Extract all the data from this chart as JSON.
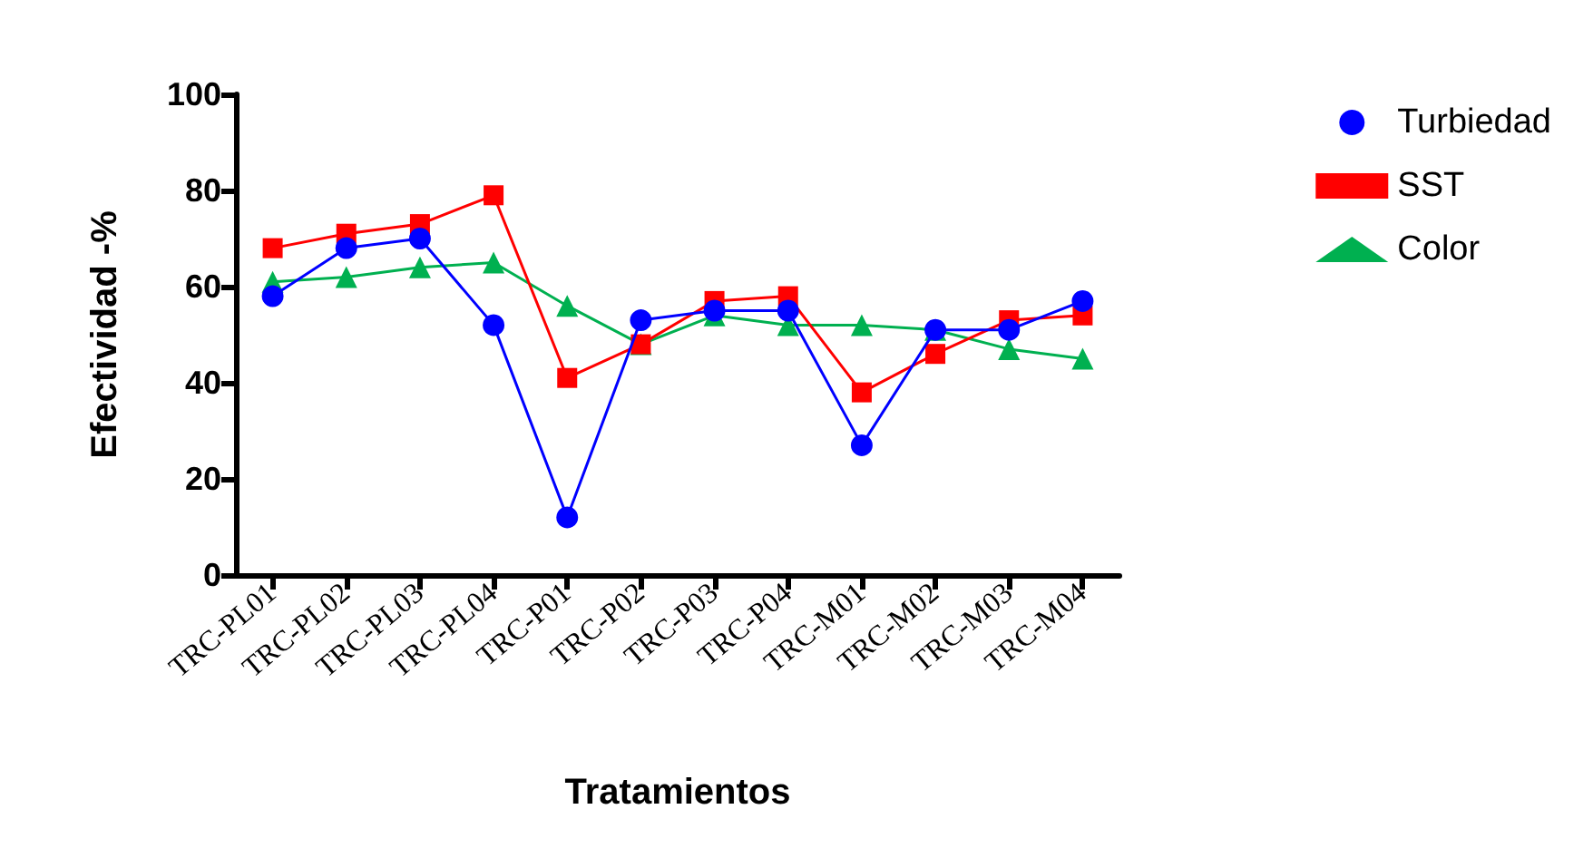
{
  "chart_data": {
    "type": "line",
    "xlabel": "Tratamientos",
    "ylabel": "Efectividad -%",
    "categories": [
      "TRC-PL01",
      "TRC-PL02",
      "TRC-PL03",
      "TRC-PL04",
      "TRC-P01",
      "TRC-P02",
      "TRC-P03",
      "TRC-P04",
      "TRC-M01",
      "TRC-M02",
      "TRC-M03",
      "TRC-M04"
    ],
    "series": [
      {
        "name": "Turbiedad",
        "color": "#0000ff",
        "marker": "circle",
        "values": [
          58,
          68,
          70,
          52,
          12,
          53,
          55,
          55,
          27,
          51,
          51,
          57
        ]
      },
      {
        "name": "SST",
        "color": "#ff0000",
        "marker": "square",
        "values": [
          68,
          71,
          73,
          79,
          41,
          48,
          57,
          58,
          38,
          46,
          53,
          54
        ]
      },
      {
        "name": "Color",
        "color": "#00b050",
        "marker": "triangle",
        "values": [
          61,
          62,
          64,
          65,
          56,
          48,
          54,
          52,
          52,
          51,
          47,
          45
        ]
      }
    ],
    "ylim": [
      0,
      100
    ],
    "yticks": [
      0,
      20,
      40,
      60,
      80,
      100
    ],
    "grid": false,
    "legend": "top right"
  }
}
